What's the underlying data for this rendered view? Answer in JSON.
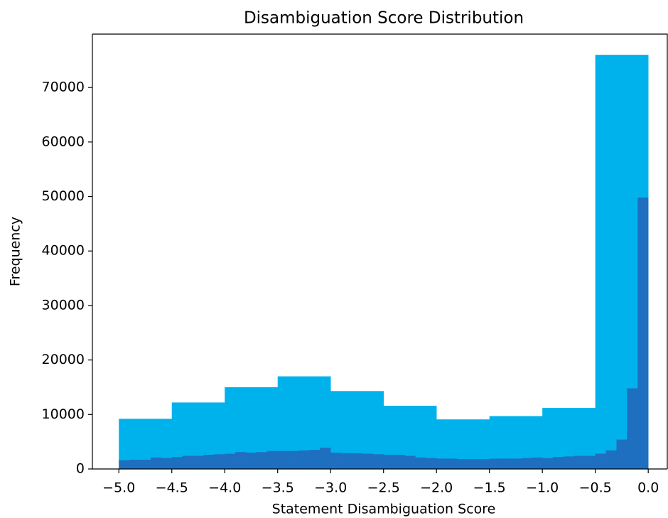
{
  "chart_data": {
    "type": "histogram",
    "title": "Disambiguation Score Distribution",
    "xlabel": "Statement Disambiguation Score",
    "ylabel": "Frequency",
    "series": [
      {
        "color": "#00b2ec",
        "bins": [
          -5.0,
          -4.5,
          -4.0,
          -3.5,
          -3.0,
          -2.5,
          -2.0,
          -1.5,
          -1.0,
          -0.5,
          0.0
        ],
        "values": [
          9200,
          12200,
          15000,
          17000,
          14300,
          11600,
          9100,
          9700,
          11200,
          76000
        ]
      },
      {
        "color": "#1f6fc0",
        "bins": [
          -5.0,
          -4.9,
          -4.8,
          -4.7,
          -4.6,
          -4.5,
          -4.4,
          -4.3,
          -4.2,
          -4.1,
          -4.0,
          -3.9,
          -3.8,
          -3.7,
          -3.6,
          -3.5,
          -3.4,
          -3.3,
          -3.2,
          -3.1,
          -3.0,
          -2.9,
          -2.8,
          -2.7,
          -2.6,
          -2.5,
          -2.4,
          -2.3,
          -2.2,
          -2.1,
          -2.0,
          -1.9,
          -1.8,
          -1.7,
          -1.6,
          -1.5,
          -1.4,
          -1.3,
          -1.2,
          -1.1,
          -1.0,
          -0.9,
          -0.8,
          -0.7,
          -0.6,
          -0.5,
          -0.4,
          -0.3,
          -0.2,
          -0.1,
          0.0
        ],
        "values": [
          1600,
          1700,
          1700,
          2100,
          2000,
          2200,
          2400,
          2400,
          2600,
          2700,
          2800,
          3100,
          3000,
          3100,
          3300,
          3300,
          3300,
          3400,
          3500,
          3900,
          3000,
          2900,
          2900,
          2800,
          2700,
          2600,
          2600,
          2400,
          2100,
          2000,
          1900,
          1900,
          1800,
          1800,
          1800,
          1900,
          1900,
          1900,
          2000,
          2100,
          2000,
          2200,
          2300,
          2400,
          2400,
          2800,
          3400,
          5400,
          14800,
          49800
        ]
      }
    ],
    "xlim": [
      -5.25,
      0.18
    ],
    "ylim": [
      0,
      79800
    ],
    "xticks": [
      {
        "value": -5.0,
        "label": "−5.0"
      },
      {
        "value": -4.5,
        "label": "−4.5"
      },
      {
        "value": -4.0,
        "label": "−4.0"
      },
      {
        "value": -3.5,
        "label": "−3.5"
      },
      {
        "value": -3.0,
        "label": "−3.0"
      },
      {
        "value": -2.5,
        "label": "−2.5"
      },
      {
        "value": -2.0,
        "label": "−2.0"
      },
      {
        "value": -1.5,
        "label": "−1.5"
      },
      {
        "value": -1.0,
        "label": "−1.0"
      },
      {
        "value": -0.5,
        "label": "−0.5"
      },
      {
        "value": 0.0,
        "label": "0.0"
      }
    ],
    "yticks": [
      0,
      10000,
      20000,
      30000,
      40000,
      50000,
      60000,
      70000
    ]
  }
}
